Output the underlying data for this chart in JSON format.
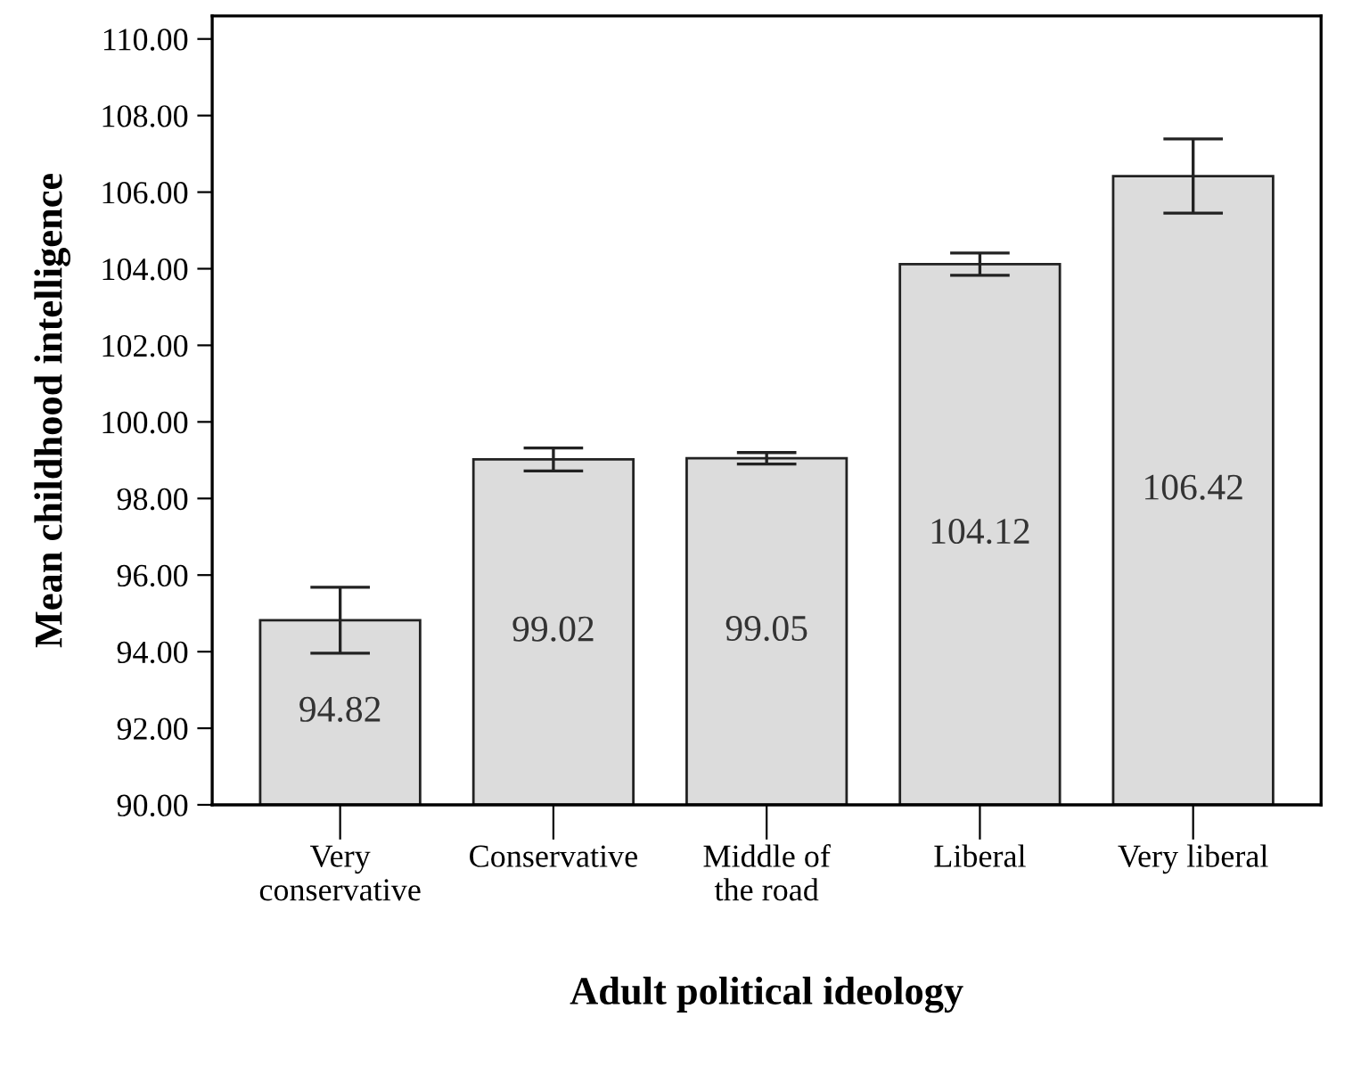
{
  "chart_data": {
    "type": "bar",
    "xlabel": "Adult political ideology",
    "ylabel": "Mean childhood intelligence",
    "categories": [
      "Very\nconservative",
      "Conservative",
      "Middle of\nthe road",
      "Liberal",
      "Very liberal"
    ],
    "values": [
      94.82,
      99.02,
      99.05,
      104.12,
      106.42
    ],
    "errors": [
      0.86,
      0.3,
      0.15,
      0.29,
      0.97
    ],
    "value_labels": [
      "94.82",
      "99.02",
      "99.05",
      "104.12",
      "106.42"
    ],
    "color": "#dcdcdc",
    "ylim": [
      90,
      110.6
    ],
    "yticks": [
      {
        "value": 90,
        "label": "90.00"
      },
      {
        "value": 92,
        "label": "92.00"
      },
      {
        "value": 94,
        "label": "94.00"
      },
      {
        "value": 96,
        "label": "96.00"
      },
      {
        "value": 98,
        "label": "98.00"
      },
      {
        "value": 100,
        "label": "100.00"
      },
      {
        "value": 102,
        "label": "102.00"
      },
      {
        "value": 104,
        "label": "104.00"
      },
      {
        "value": 106,
        "label": "106.00"
      },
      {
        "value": 108,
        "label": "108.00"
      },
      {
        "value": 110,
        "label": "110.00"
      }
    ],
    "grid": false,
    "legend": false
  }
}
